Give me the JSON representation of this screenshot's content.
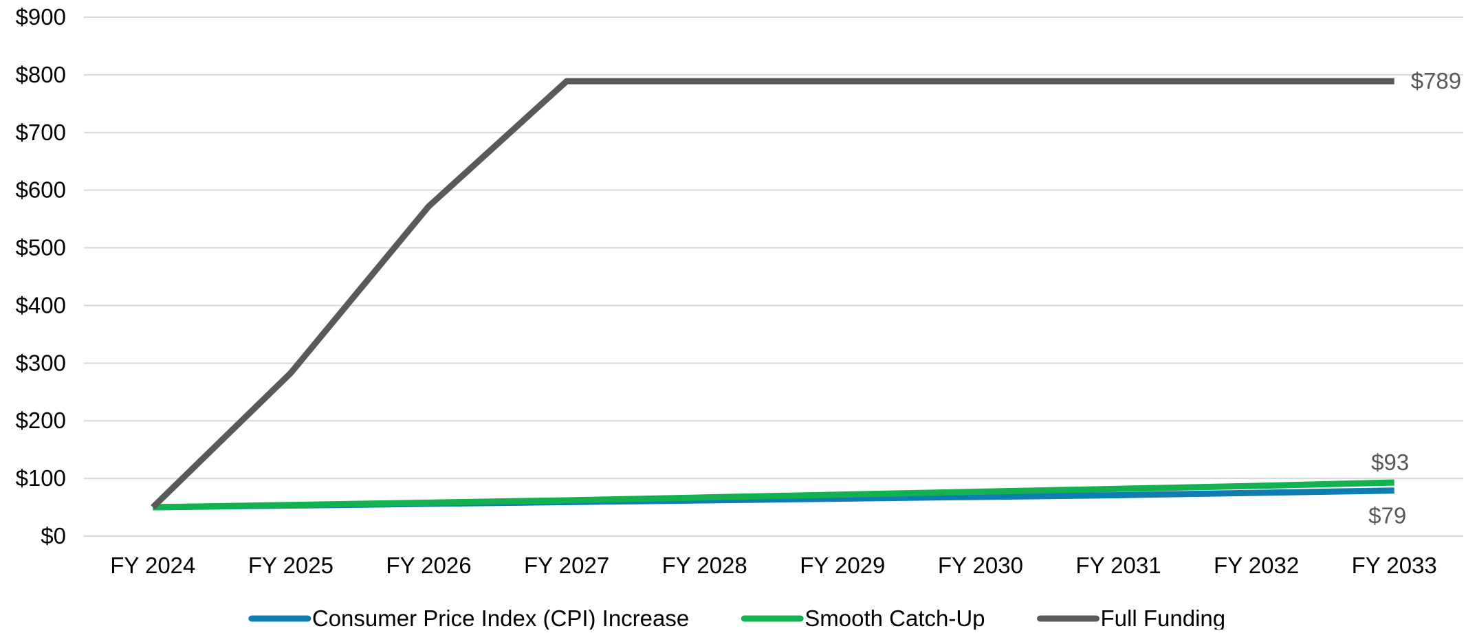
{
  "chart_data": {
    "type": "line",
    "title": "",
    "xlabel": "",
    "ylabel": "",
    "categories": [
      "FY 2024",
      "FY 2025",
      "FY 2026",
      "FY 2027",
      "FY 2028",
      "FY 2029",
      "FY 2030",
      "FY 2031",
      "FY 2032",
      "FY 2033"
    ],
    "ylim": [
      0,
      900
    ],
    "y_ticks": [
      "$0",
      "$100",
      "$200",
      "$300",
      "$400",
      "$500",
      "$600",
      "$700",
      "$800",
      "$900"
    ],
    "grid": true,
    "legend_position": "bottom",
    "series": [
      {
        "name": "Consumer Price Index (CPI) Increase",
        "color": "#0e7eb2",
        "values": [
          50,
          53,
          56,
          59,
          62,
          65,
          68,
          71,
          75,
          79
        ]
      },
      {
        "name": "Smooth Catch-Up",
        "color": "#13b14f",
        "values": [
          50,
          54,
          58,
          62,
          67,
          72,
          77,
          82,
          87,
          93
        ]
      },
      {
        "name": "Full Funding",
        "color": "#595959",
        "values": [
          50,
          283,
          572,
          789,
          789,
          789,
          789,
          789,
          789,
          789
        ]
      }
    ],
    "end_labels": [
      {
        "series": "Full Funding",
        "text": "$789"
      },
      {
        "series": "Smooth Catch-Up",
        "text": "$93"
      },
      {
        "series": "Consumer Price Index (CPI) Increase",
        "text": "$79"
      }
    ]
  }
}
